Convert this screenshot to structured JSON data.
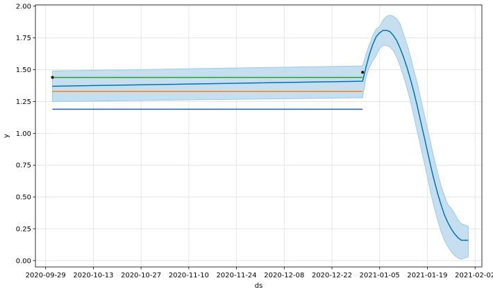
{
  "chart_data": {
    "type": "line",
    "title": "",
    "xlabel": "ds",
    "ylabel": "y",
    "x_axis_type": "date",
    "xlim": [
      "2020-09-26",
      "2021-02-04"
    ],
    "ylim": [
      -0.05,
      2.01
    ],
    "grid": true,
    "x_ticks": [
      "2020-09-29",
      "2020-10-13",
      "2020-10-27",
      "2020-11-10",
      "2020-11-24",
      "2020-12-08",
      "2020-12-22",
      "2021-01-05",
      "2021-01-19",
      "2021-02-02"
    ],
    "y_ticks": [
      "0.00",
      "0.25",
      "0.50",
      "0.75",
      "1.00",
      "1.25",
      "1.50",
      "1.75",
      "2.00"
    ],
    "series": [
      {
        "type": "band",
        "color": "#c6dff0",
        "edge_color": "#9fc8e3",
        "x": [
          "2020-10-01",
          "2020-12-31",
          "2021-01-01",
          "2021-01-02",
          "2021-01-03",
          "2021-01-04",
          "2021-01-05",
          "2021-01-06",
          "2021-01-07",
          "2021-01-08",
          "2021-01-09",
          "2021-01-10",
          "2021-01-11",
          "2021-01-12",
          "2021-01-13",
          "2021-01-14",
          "2021-01-15",
          "2021-01-16",
          "2021-01-17",
          "2021-01-18",
          "2021-01-19",
          "2021-01-20",
          "2021-01-21",
          "2021-01-22",
          "2021-01-23",
          "2021-01-24",
          "2021-01-25",
          "2021-01-26",
          "2021-01-27",
          "2021-01-28",
          "2021-01-29",
          "2021-01-30",
          "2021-01-31"
        ],
        "upper": [
          1.49,
          1.53,
          1.62,
          1.7,
          1.77,
          1.82,
          1.84,
          1.89,
          1.92,
          1.93,
          1.92,
          1.9,
          1.86,
          1.78,
          1.7,
          1.61,
          1.5,
          1.4,
          1.28,
          1.16,
          1.04,
          0.92,
          0.8,
          0.69,
          0.59,
          0.51,
          0.44,
          0.41,
          0.37,
          0.32,
          0.29,
          0.28,
          0.27
        ],
        "lower": [
          1.25,
          1.28,
          1.44,
          1.52,
          1.57,
          1.61,
          1.67,
          1.69,
          1.69,
          1.68,
          1.65,
          1.6,
          1.53,
          1.45,
          1.36,
          1.26,
          1.14,
          1.02,
          0.9,
          0.78,
          0.66,
          0.53,
          0.42,
          0.32,
          0.23,
          0.16,
          0.11,
          0.07,
          0.04,
          0.02,
          0.01,
          0.02,
          0.03
        ]
      },
      {
        "type": "line",
        "color": "#1f5fa8",
        "x": [
          "2020-10-01",
          "2020-12-31"
        ],
        "y": [
          1.19,
          1.19
        ]
      },
      {
        "type": "line",
        "color": "#ff7f0e",
        "x": [
          "2020-10-01",
          "2020-12-31"
        ],
        "y": [
          1.33,
          1.33
        ]
      },
      {
        "type": "line",
        "color": "#2ca02c",
        "x": [
          "2020-10-01",
          "2020-12-31"
        ],
        "y": [
          1.44,
          1.44
        ]
      },
      {
        "type": "line",
        "color": "#0072b2",
        "x": [
          "2020-10-01",
          "2020-12-31",
          "2021-01-01",
          "2021-01-02",
          "2021-01-03",
          "2021-01-04",
          "2021-01-05",
          "2021-01-06",
          "2021-01-07",
          "2021-01-08",
          "2021-01-09",
          "2021-01-10",
          "2021-01-11",
          "2021-01-12",
          "2021-01-13",
          "2021-01-14",
          "2021-01-15",
          "2021-01-16",
          "2021-01-17",
          "2021-01-18",
          "2021-01-19",
          "2021-01-20",
          "2021-01-21",
          "2021-01-22",
          "2021-01-23",
          "2021-01-24",
          "2021-01-25",
          "2021-01-26",
          "2021-01-27",
          "2021-01-28",
          "2021-01-29",
          "2021-01-30",
          "2021-01-31"
        ],
        "y": [
          1.37,
          1.41,
          1.52,
          1.62,
          1.7,
          1.76,
          1.79,
          1.81,
          1.81,
          1.8,
          1.77,
          1.73,
          1.67,
          1.6,
          1.52,
          1.43,
          1.33,
          1.22,
          1.1,
          0.98,
          0.86,
          0.74,
          0.63,
          0.53,
          0.44,
          0.36,
          0.3,
          0.25,
          0.21,
          0.18,
          0.16,
          0.16,
          0.16
        ]
      },
      {
        "type": "scatter",
        "color": "#000000",
        "x": [
          "2020-10-01",
          "2020-12-31"
        ],
        "y": [
          1.44,
          1.48
        ]
      }
    ]
  }
}
